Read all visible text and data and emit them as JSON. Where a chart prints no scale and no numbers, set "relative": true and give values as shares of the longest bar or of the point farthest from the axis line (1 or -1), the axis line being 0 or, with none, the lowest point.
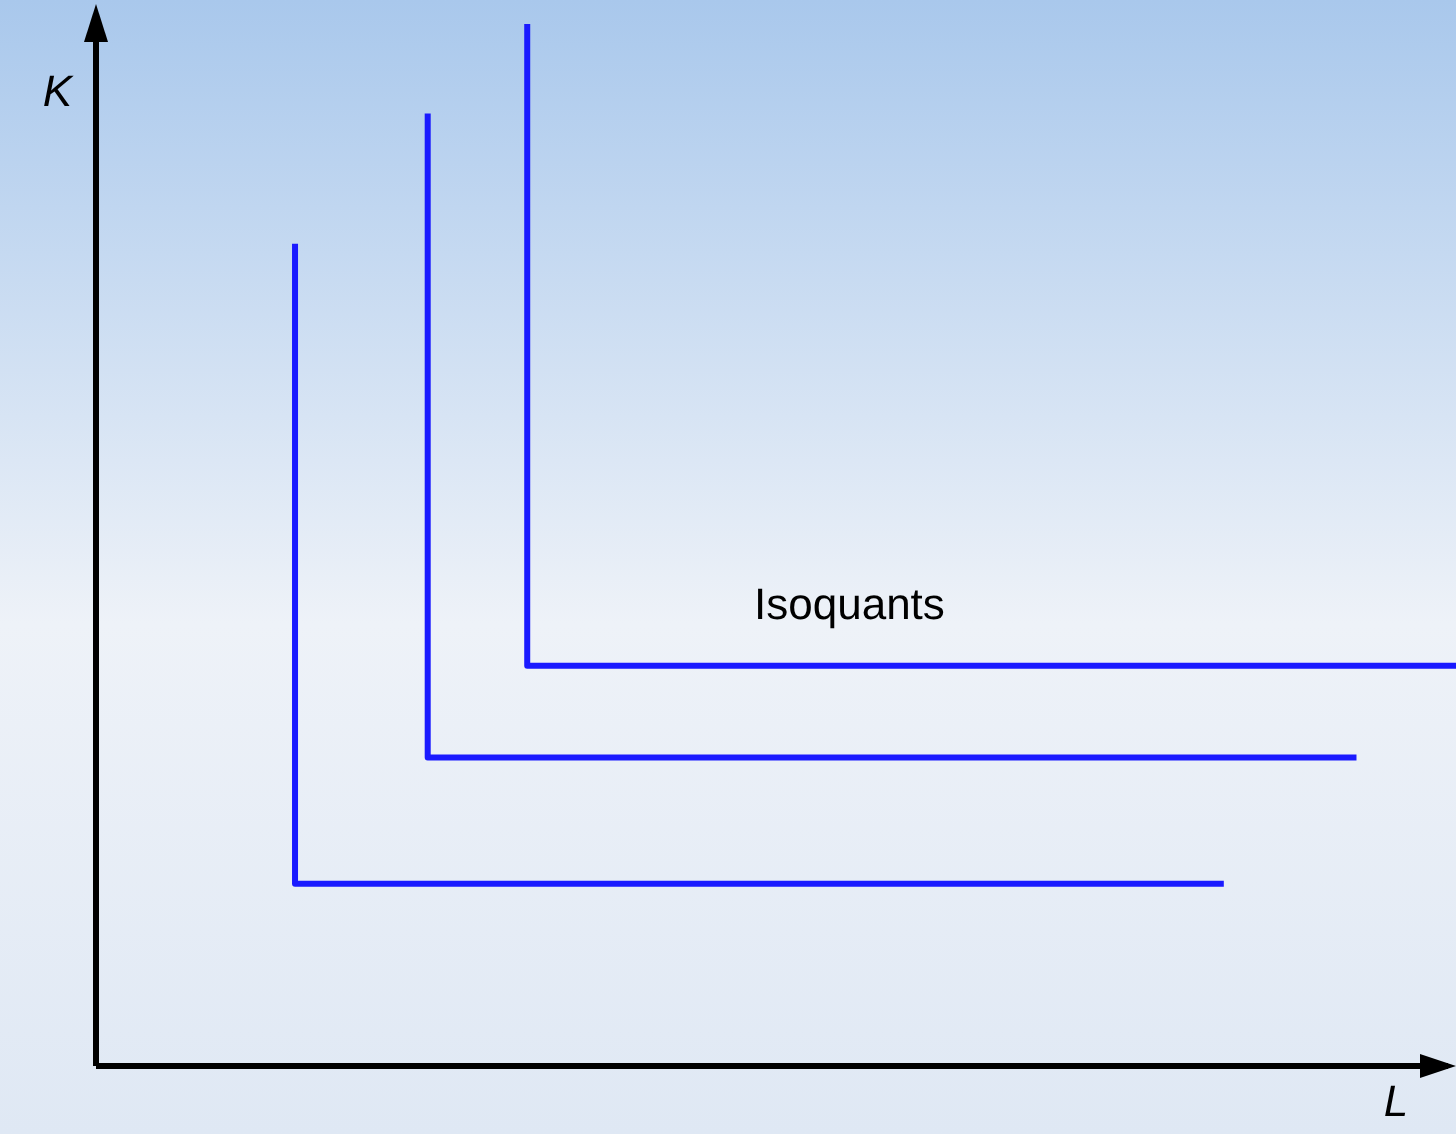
{
  "chart_data": {
    "type": "step",
    "relative": true,
    "xlabel": "L",
    "ylabel": "K",
    "annotations": [
      "Isoquants"
    ],
    "marker": "none",
    "line_style": "solid",
    "legend": false,
    "categories": [
      null,
      null,
      null,
      null,
      null,
      null,
      null,
      null,
      null,
      null,
      null,
      null,
      null,
      null,
      null,
      null,
      null,
      null,
      null,
      null,
      null,
      null,
      null,
      null,
      null,
      null,
      null,
      null,
      null,
      null,
      null,
      null,
      null,
      null,
      null,
      null,
      null,
      null,
      null,
      null,
      null,
      null
    ],
    "series": [
      {
        "color": "#1a1aff",
        "values": [
          null,
          null,
          null,
          null,
          null,
          null,
          0.789,
          0.175,
          0.175,
          0.175,
          0.175,
          0.175,
          0.175,
          0.175,
          0.175,
          0.175,
          0.175,
          0.175,
          0.175,
          0.175,
          0.175,
          0.175,
          0.175,
          0.175,
          0.175,
          0.175,
          0.175,
          0.175,
          0.175,
          0.175,
          0.175,
          0.175,
          0.175,
          0.175,
          0.175,
          null,
          null,
          null,
          null,
          null,
          null,
          null
        ]
      },
      {
        "color": "#1a1aff",
        "values": [
          null,
          null,
          null,
          null,
          null,
          null,
          null,
          null,
          null,
          null,
          0.914,
          0.296,
          0.296,
          0.296,
          0.296,
          0.296,
          0.296,
          0.296,
          0.296,
          0.296,
          0.296,
          0.296,
          0.296,
          0.296,
          0.296,
          0.296,
          0.296,
          0.296,
          0.296,
          0.296,
          0.296,
          0.296,
          0.296,
          0.296,
          0.296,
          0.296,
          0.296,
          0.296,
          0.296,
          null,
          null,
          null
        ]
      },
      {
        "color": "#1a1aff",
        "values": [
          null,
          null,
          null,
          null,
          null,
          null,
          null,
          null,
          null,
          null,
          null,
          null,
          null,
          1,
          0.384,
          0.384,
          0.384,
          0.384,
          0.384,
          0.384,
          0.384,
          0.384,
          0.384,
          0.384,
          0.384,
          0.384,
          0.384,
          0.384,
          0.384,
          0.384,
          0.384,
          0.384,
          0.384,
          0.384,
          0.384,
          0.384,
          0.384,
          0.384,
          0.384,
          0.384,
          0.384,
          0.384
        ]
      }
    ]
  }
}
